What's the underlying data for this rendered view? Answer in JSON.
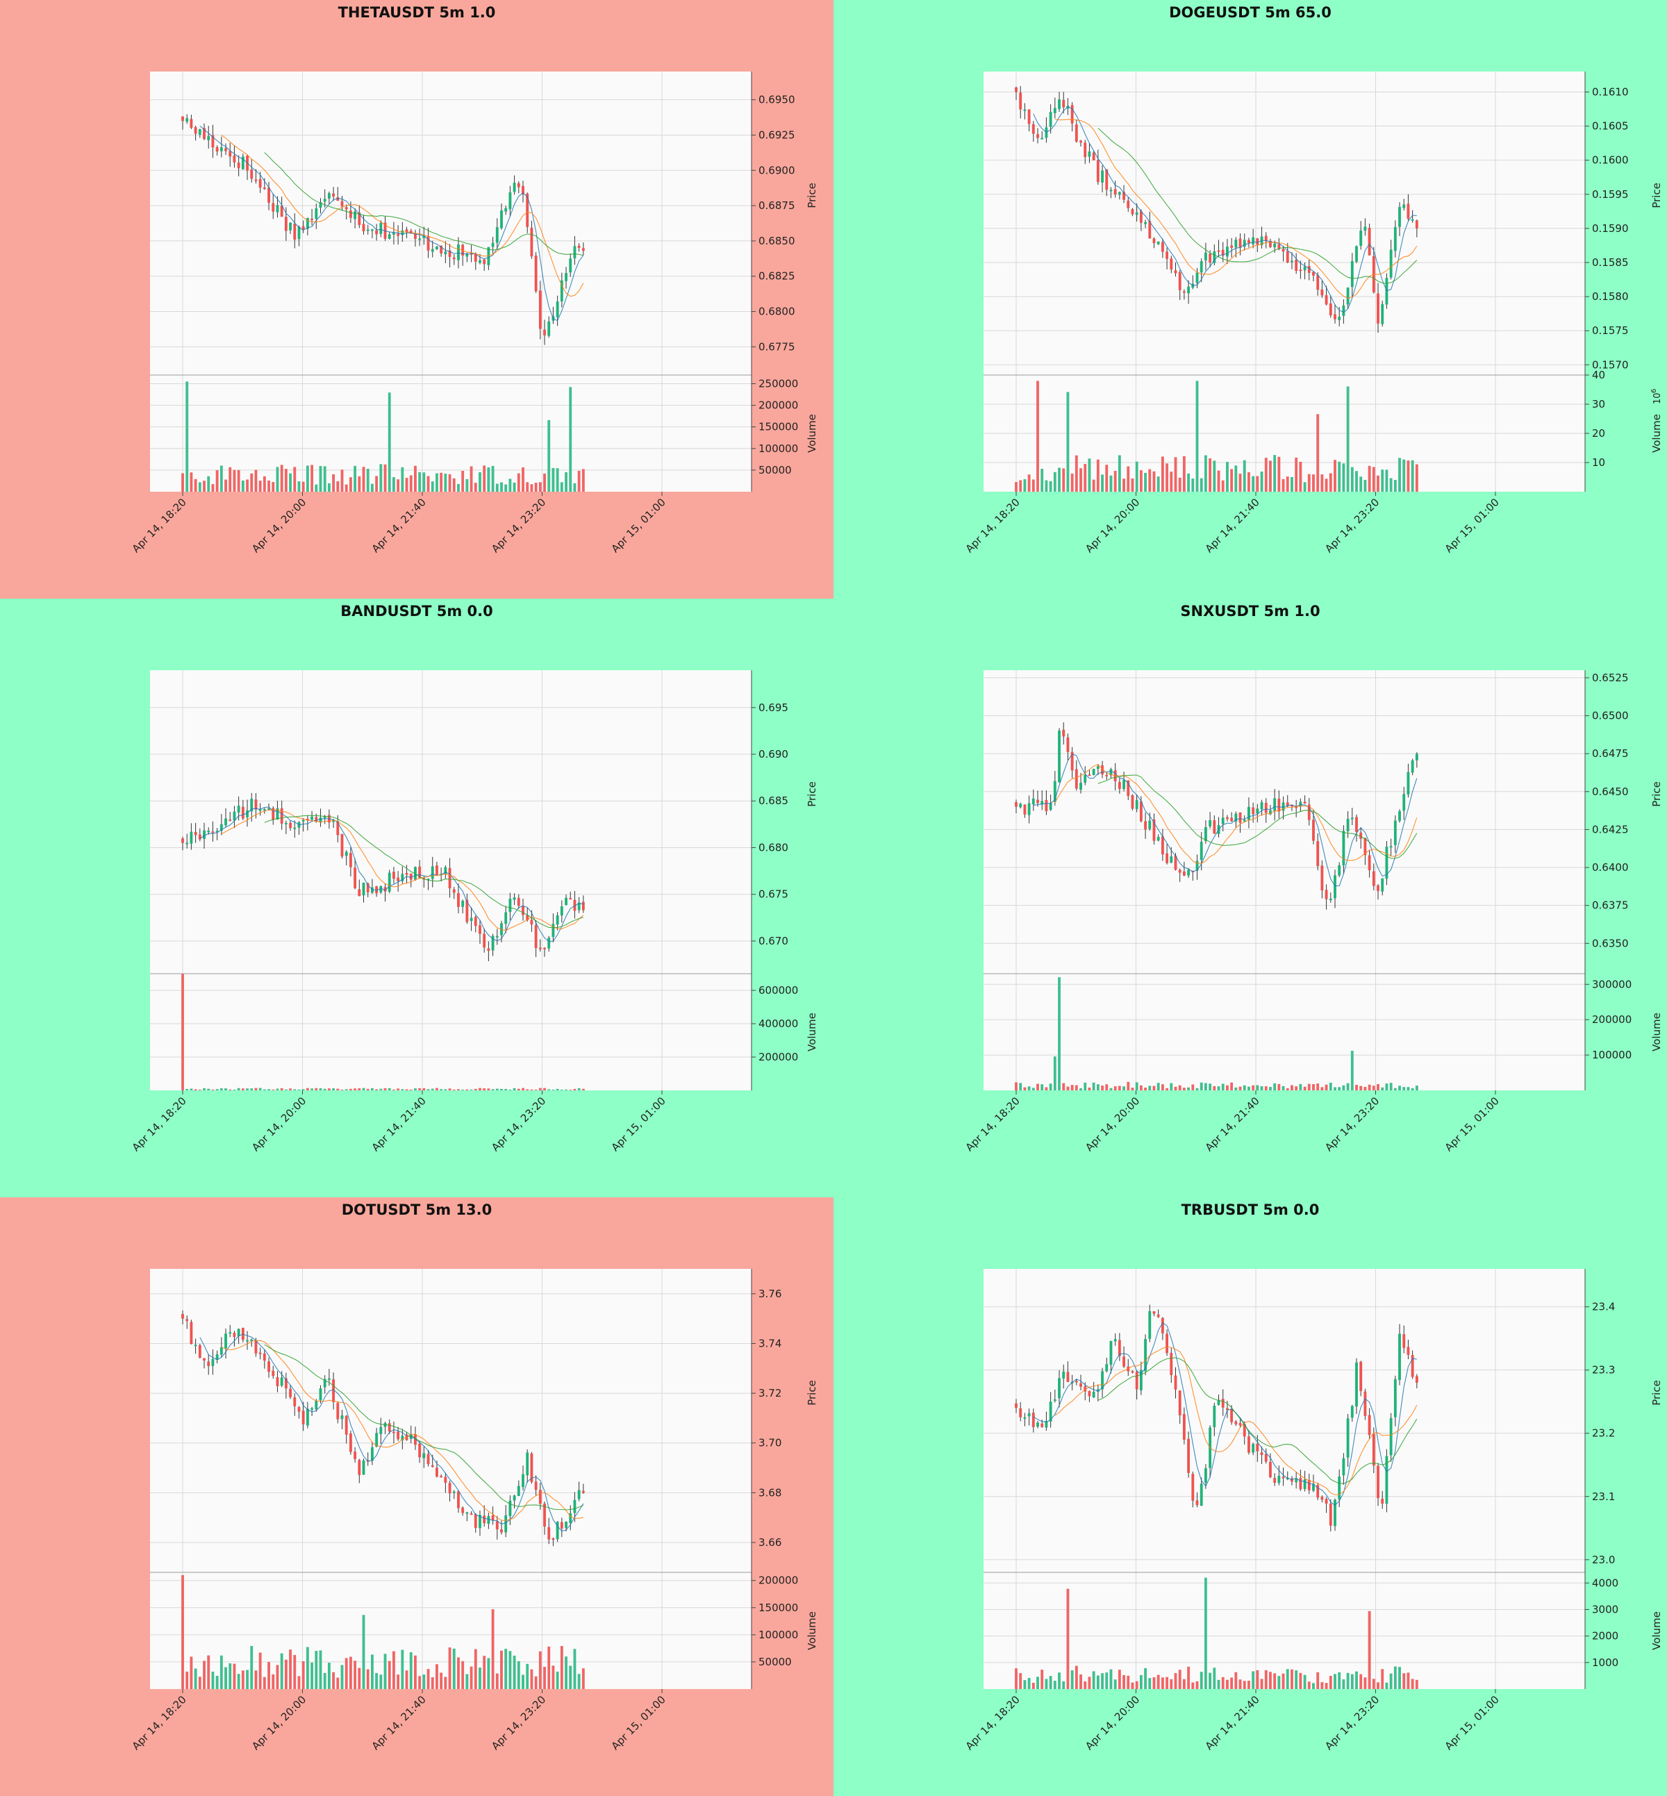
{
  "colors": {
    "bg_red": "#f9a79c",
    "bg_green": "#8effc6",
    "plot_bg": "#fafafa",
    "up": "#26a69a",
    "up_body": "#20b27a",
    "down": "#ef5350",
    "ma_fast": "#1f77b4",
    "ma_mid": "#ff7f0e",
    "ma_slow": "#2ca02c",
    "grid": "#d8d8d8"
  },
  "x_tick_labels": [
    "Apr 14, 18:20",
    "Apr 14, 20:00",
    "Apr 14, 21:40",
    "Apr 14, 23:20",
    "Apr 15, 01:00"
  ],
  "price_axis_label": "Price",
  "volume_axis_label": "Volume",
  "chart_data": [
    {
      "type": "candlestick",
      "title": "THETAUSDT 5m 1.0",
      "background": "red",
      "ylabel": "Price",
      "price_ylim": [
        0.6755,
        0.697
      ],
      "price_ticks": [
        "0.6950",
        "0.6925",
        "0.6900",
        "0.6875",
        "0.6850",
        "0.6825",
        "0.6800",
        "0.6775"
      ],
      "volume_ylabel": "Volume",
      "volume_ylim": [
        0,
        270000
      ],
      "volume_ticks": [
        "250000",
        "200000",
        "150000",
        "100000",
        "50000"
      ],
      "volume_exponent": "",
      "start": 0.6935,
      "end": 0.6843,
      "vol_base": 40000,
      "vol_max": 255000,
      "shape": [
        [
          0,
          0.6935
        ],
        [
          0.15,
          0.6905
        ],
        [
          0.28,
          0.6855
        ],
        [
          0.38,
          0.6885
        ],
        [
          0.45,
          0.6862
        ],
        [
          0.62,
          0.6848
        ],
        [
          0.75,
          0.6835
        ],
        [
          0.84,
          0.6895
        ],
        [
          0.9,
          0.6778
        ],
        [
          0.97,
          0.6845
        ],
        [
          1,
          0.6843
        ]
      ],
      "vol_spikes": [
        [
          1,
          1.0
        ],
        [
          48,
          0.9
        ],
        [
          90,
          0.95
        ],
        [
          85,
          0.65
        ]
      ]
    },
    {
      "type": "candlestick",
      "title": "DOGEUSDT 5m 65.0",
      "background": "green",
      "ylabel": "Price",
      "price_ylim": [
        0.15685,
        0.1613
      ],
      "price_ticks": [
        "0.1610",
        "0.1605",
        "0.1600",
        "0.1595",
        "0.1590",
        "0.1585",
        "0.1580",
        "0.1575",
        "0.1570"
      ],
      "volume_ylabel": "Volume",
      "volume_ylim": [
        0,
        40
      ],
      "volume_ticks": [
        "40",
        "30",
        "20",
        "10"
      ],
      "volume_exponent": "10^6",
      "start": 0.161,
      "end": 0.159,
      "vol_base": 8,
      "vol_max": 38,
      "shape": [
        [
          0,
          0.161
        ],
        [
          0.05,
          0.1603
        ],
        [
          0.11,
          0.1609
        ],
        [
          0.2,
          0.1598
        ],
        [
          0.31,
          0.1592
        ],
        [
          0.42,
          0.1581
        ],
        [
          0.48,
          0.1586
        ],
        [
          0.6,
          0.1589
        ],
        [
          0.74,
          0.1583
        ],
        [
          0.8,
          0.1576
        ],
        [
          0.87,
          0.1591
        ],
        [
          0.9,
          0.1576
        ],
        [
          0.96,
          0.1593
        ],
        [
          1,
          0.159
        ]
      ],
      "vol_spikes": [
        [
          5,
          1.0
        ],
        [
          12,
          0.9
        ],
        [
          42,
          1.0
        ],
        [
          77,
          0.95
        ],
        [
          70,
          0.7
        ]
      ]
    },
    {
      "type": "candlestick",
      "title": "BANDUSDT 5m 0.0",
      "background": "green",
      "ylabel": "Price",
      "price_ylim": [
        0.6665,
        0.699
      ],
      "price_ticks": [
        "0.695",
        "0.690",
        "0.685",
        "0.680",
        "0.675",
        "0.670"
      ],
      "volume_ylabel": "Volume",
      "volume_ylim": [
        0,
        700000
      ],
      "volume_ticks": [
        "600000",
        "400000",
        "200000"
      ],
      "volume_exponent": "",
      "start": 0.6805,
      "end": 0.6733,
      "vol_base": 9000,
      "vol_max": 700000,
      "shape": [
        [
          0,
          0.6805
        ],
        [
          0.18,
          0.6845
        ],
        [
          0.28,
          0.6825
        ],
        [
          0.37,
          0.683
        ],
        [
          0.44,
          0.6755
        ],
        [
          0.55,
          0.6768
        ],
        [
          0.65,
          0.6775
        ],
        [
          0.76,
          0.669
        ],
        [
          0.82,
          0.675
        ],
        [
          0.9,
          0.6685
        ],
        [
          0.95,
          0.6745
        ],
        [
          1,
          0.6733
        ]
      ],
      "vol_spikes": [
        [
          0,
          1.0
        ]
      ]
    },
    {
      "type": "candlestick",
      "title": "SNXUSDT 5m 1.0",
      "background": "green",
      "ylabel": "Price",
      "price_ylim": [
        0.633,
        0.653
      ],
      "price_ticks": [
        "0.6525",
        "0.6500",
        "0.6475",
        "0.6450",
        "0.6425",
        "0.6400",
        "0.6375",
        "0.6350"
      ],
      "volume_ylabel": "Volume",
      "volume_ylim": [
        0,
        330000
      ],
      "volume_ticks": [
        "300000",
        "200000",
        "100000"
      ],
      "volume_exponent": "",
      "start": 0.644,
      "end": 0.6475,
      "vol_base": 15000,
      "vol_max": 320000,
      "shape": [
        [
          0,
          0.644
        ],
        [
          0.09,
          0.644
        ],
        [
          0.11,
          0.6495
        ],
        [
          0.15,
          0.6455
        ],
        [
          0.24,
          0.6465
        ],
        [
          0.3,
          0.644
        ],
        [
          0.42,
          0.639
        ],
        [
          0.48,
          0.6425
        ],
        [
          0.6,
          0.644
        ],
        [
          0.72,
          0.644
        ],
        [
          0.78,
          0.637
        ],
        [
          0.83,
          0.644
        ],
        [
          0.9,
          0.6385
        ],
        [
          0.97,
          0.645
        ],
        [
          1,
          0.6475
        ]
      ],
      "vol_spikes": [
        [
          10,
          1.0
        ],
        [
          9,
          0.3
        ],
        [
          78,
          0.35
        ]
      ]
    },
    {
      "type": "candlestick",
      "title": "DOTUSDT 5m 13.0",
      "background": "red",
      "ylabel": "Price",
      "price_ylim": [
        3.648,
        3.77
      ],
      "price_ticks": [
        "3.76",
        "3.74",
        "3.72",
        "3.70",
        "3.68",
        "3.66"
      ],
      "volume_ylabel": "Volume",
      "volume_ylim": [
        0,
        215000
      ],
      "volume_ticks": [
        "200000",
        "150000",
        "100000",
        "50000"
      ],
      "volume_exponent": "",
      "start": 3.75,
      "end": 3.68,
      "vol_base": 50000,
      "vol_max": 210000,
      "shape": [
        [
          0,
          3.75
        ],
        [
          0.05,
          3.73
        ],
        [
          0.12,
          3.745
        ],
        [
          0.18,
          3.74
        ],
        [
          0.3,
          3.71
        ],
        [
          0.36,
          3.725
        ],
        [
          0.44,
          3.69
        ],
        [
          0.5,
          3.705
        ],
        [
          0.58,
          3.7
        ],
        [
          0.72,
          3.67
        ],
        [
          0.8,
          3.665
        ],
        [
          0.86,
          3.695
        ],
        [
          0.91,
          3.66
        ],
        [
          1,
          3.68
        ]
      ],
      "vol_spikes": [
        [
          0,
          1.0
        ],
        [
          42,
          0.65
        ],
        [
          72,
          0.7
        ]
      ]
    },
    {
      "type": "candlestick",
      "title": "TRBUSDT 5m 0.0",
      "background": "green",
      "ylabel": "Price",
      "price_ylim": [
        22.98,
        23.46
      ],
      "price_ticks": [
        "23.4",
        "23.3",
        "23.2",
        "23.1",
        "23.0"
      ],
      "volume_ylabel": "Volume",
      "volume_ylim": [
        0,
        4400
      ],
      "volume_ticks": [
        "4000",
        "3000",
        "2000",
        "1000"
      ],
      "volume_exponent": "",
      "start": 23.24,
      "end": 23.28,
      "vol_base": 550,
      "vol_max": 4200,
      "shape": [
        [
          0,
          23.24
        ],
        [
          0.06,
          23.2
        ],
        [
          0.12,
          23.3
        ],
        [
          0.2,
          23.25
        ],
        [
          0.24,
          23.35
        ],
        [
          0.3,
          23.27
        ],
        [
          0.34,
          23.41
        ],
        [
          0.4,
          23.27
        ],
        [
          0.45,
          23.07
        ],
        [
          0.5,
          23.26
        ],
        [
          0.58,
          23.18
        ],
        [
          0.66,
          23.12
        ],
        [
          0.73,
          23.12
        ],
        [
          0.79,
          23.06
        ],
        [
          0.85,
          23.3
        ],
        [
          0.91,
          23.08
        ],
        [
          0.96,
          23.36
        ],
        [
          1,
          23.28
        ]
      ],
      "vol_spikes": [
        [
          12,
          0.9
        ],
        [
          44,
          1.0
        ],
        [
          82,
          0.7
        ]
      ]
    }
  ]
}
